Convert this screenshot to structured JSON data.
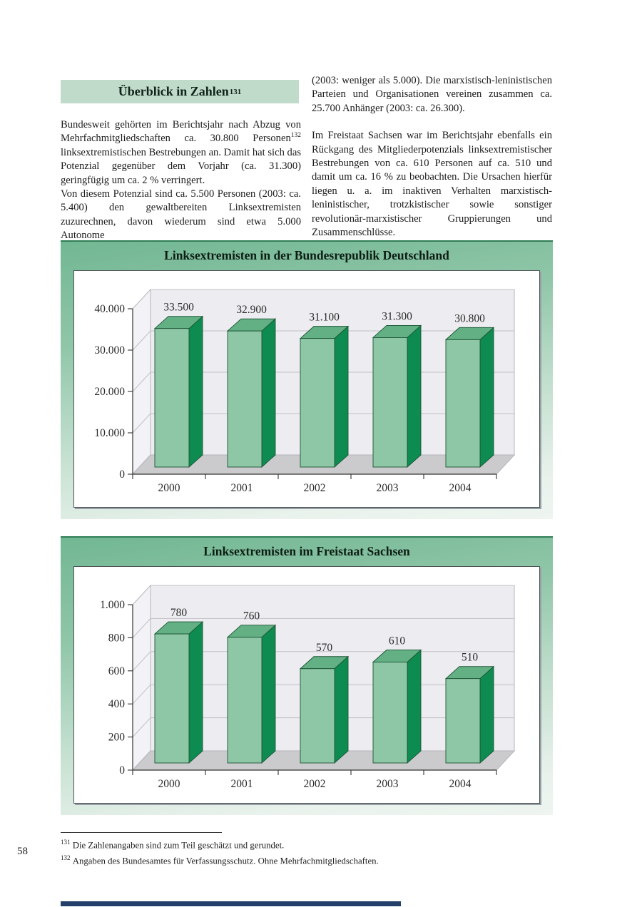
{
  "page": {
    "number": "58"
  },
  "header": {
    "title": "Überblick in Zahlen",
    "footnote_ref": "131",
    "bg_color": "#c0dbca"
  },
  "columns": {
    "left": {
      "p1_pre": "Bundesweit gehörten im Berichtsjahr nach Abzug von Mehrfachmitgliedschaften ca. 30.800 Personen",
      "p1_sup": "132",
      "p1_post": " linksextremistischen Bestrebungen an. Damit hat sich das Potenzial gegenüber dem Vorjahr (ca. 31.300) geringfügig um ca. 2 % verringert.",
      "p2": "Von diesem Potenzial sind ca. 5.500 Personen (2003: ca. 5.400) den gewaltbereiten Linksextremisten zuzurechnen, davon wiederum sind etwa 5.000 Autonome"
    },
    "right": {
      "p1": "(2003: weniger als 5.000). Die marxistisch-leninistischen Parteien und Organisationen vereinen zusammen ca. 25.700 Anhänger (2003: ca. 26.300).",
      "p2": "Im Freistaat Sachsen war im Berichtsjahr ebenfalls ein Rückgang des Mitgliederpotenzials linksextremistischer Bestrebungen von ca. 610 Personen auf ca. 510 und damit um ca. 16 % zu beobachten. Die Ursachen hierfür liegen u. a. im inaktiven Verhalten marxistisch-leninistischer, trotzkistischer sowie sonstiger revolutionär-marxistischer Gruppierungen und Zusammenschlüsse."
    }
  },
  "chart_data": [
    {
      "type": "bar",
      "style": "3d-column",
      "title": "Linksextremisten in der Bundesrepublik Deutschland",
      "categories": [
        "2000",
        "2001",
        "2002",
        "2003",
        "2004"
      ],
      "values": [
        33500,
        32900,
        31100,
        31300,
        30800
      ],
      "value_labels": [
        "33.500",
        "32.900",
        "31.100",
        "31.300",
        "30.800"
      ],
      "yticks": [
        0,
        10000,
        20000,
        30000,
        40000
      ],
      "ytick_labels": [
        "0",
        "10.000",
        "20.000",
        "30.000",
        "40.000"
      ],
      "ylim": [
        0,
        40000
      ],
      "grid": true,
      "legend": "none"
    },
    {
      "type": "bar",
      "style": "3d-column",
      "title": "Linksextremisten im Freistaat Sachsen",
      "categories": [
        "2000",
        "2001",
        "2002",
        "2003",
        "2004"
      ],
      "values": [
        780,
        760,
        570,
        610,
        510
      ],
      "value_labels": [
        "780",
        "760",
        "570",
        "610",
        "510"
      ],
      "yticks": [
        0,
        200,
        400,
        600,
        800,
        1000
      ],
      "ytick_labels": [
        "0",
        "200",
        "400",
        "600",
        "800",
        "1.000"
      ],
      "ylim": [
        0,
        1000
      ],
      "grid": true,
      "legend": "none"
    }
  ],
  "footnotes": [
    {
      "num": "131",
      "text": "Die Zahlenangaben sind zum Teil geschätzt und gerundet."
    },
    {
      "num": "132",
      "text": "Angaben des Bundesamtes für Verfassungsschutz. Ohne Mehrfachmitgliedschaften."
    }
  ],
  "colors": {
    "bar_front": "#8ec7a5",
    "bar_top": "#62b083",
    "bar_side": "#0d8b51",
    "bar_outline": "#1c5435",
    "back_wall": "#ededf1",
    "left_wall": "#f3f3f7",
    "floor": "#cbcbce",
    "wall_edge": "#b4b4ba",
    "gridline": "#c0c0c5",
    "axis": "#333333",
    "label_text": "#2a2a2a",
    "footer_bar": "#23406b"
  }
}
